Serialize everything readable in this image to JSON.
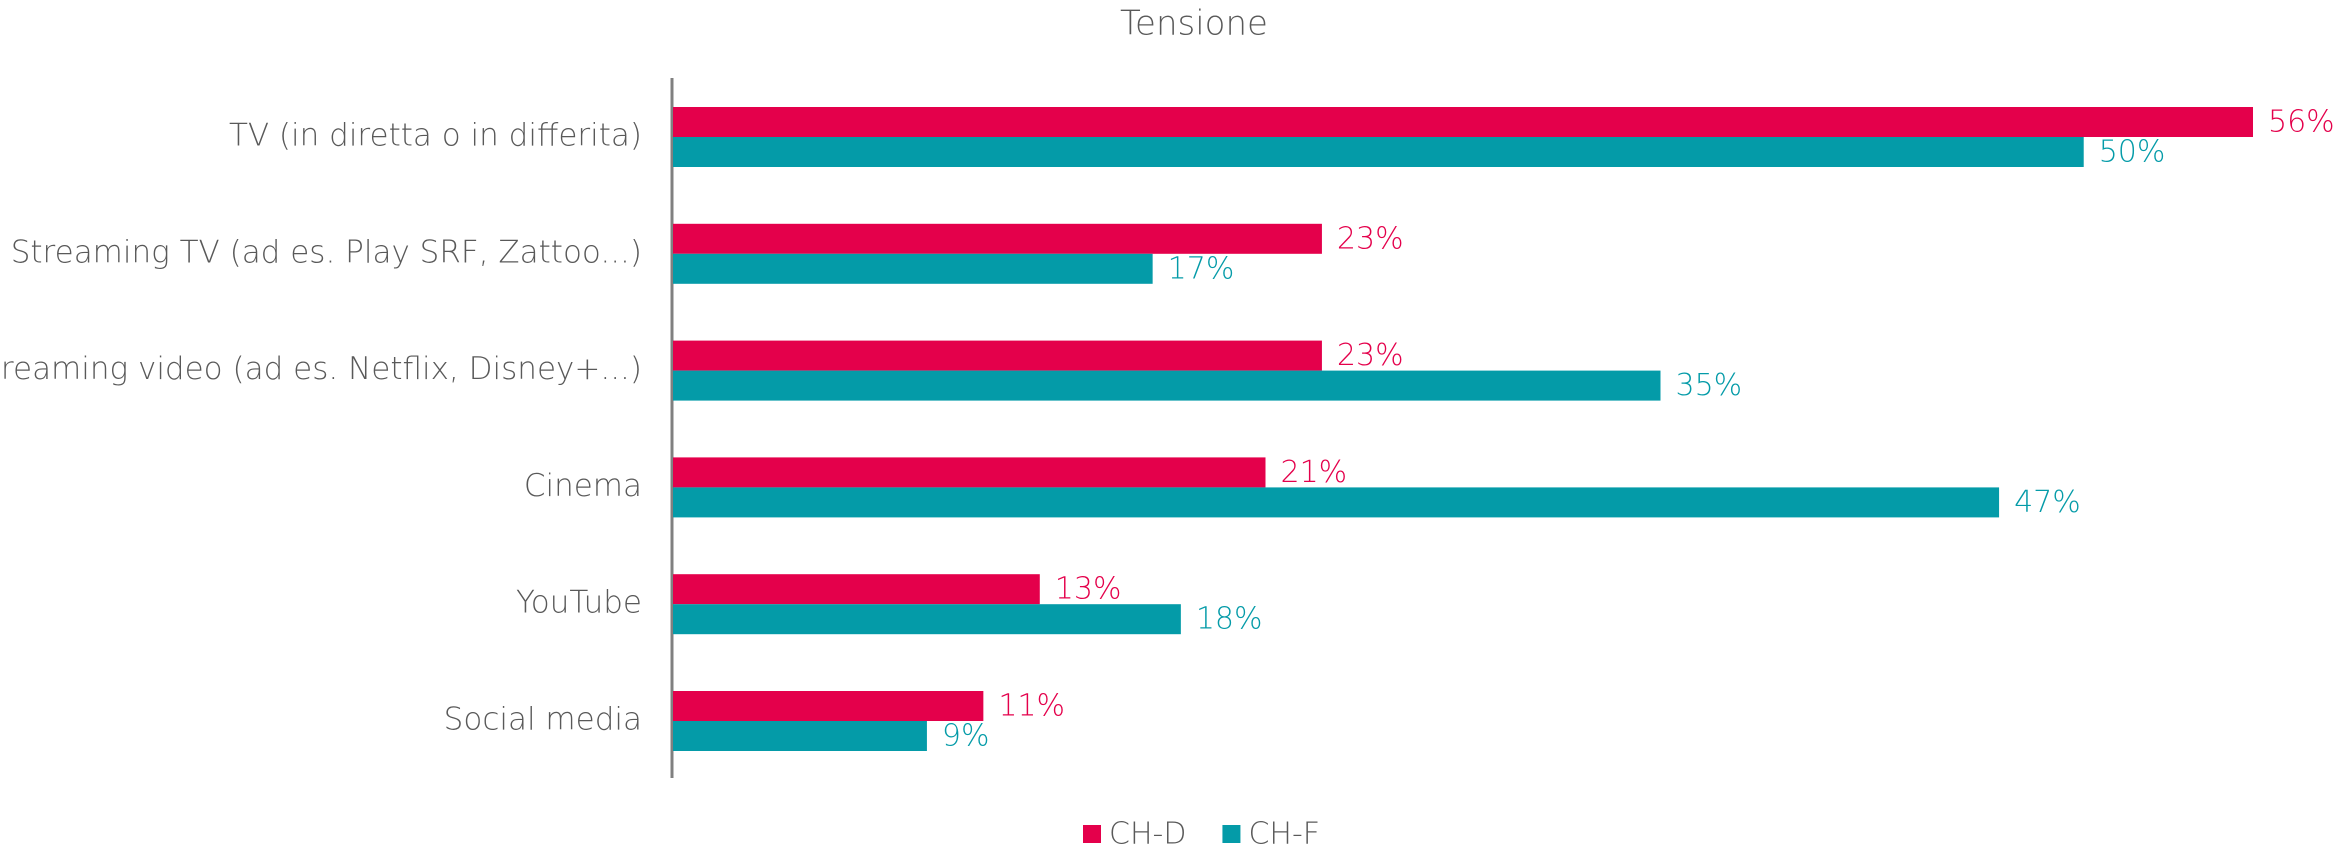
{
  "chart_data": {
    "type": "hbar",
    "title": "Tensione",
    "categories": [
      "TV (in diretta o in differita)",
      "Streaming TV (ad es. Play SRF, Zattoo...)",
      "Streaming video (ad es. Netflix, Disney+...)",
      "Cinema",
      "YouTube",
      "Social media"
    ],
    "series": [
      {
        "name": "CH-D",
        "color": "#e4004b",
        "values": [
          56,
          23,
          23,
          21,
          13,
          11
        ],
        "value_labels": [
          "56%",
          "23%",
          "23%",
          "21%",
          "13%",
          "11%"
        ]
      },
      {
        "name": "CH-F",
        "color": "#049ba8",
        "values": [
          50,
          17,
          35,
          47,
          18,
          9
        ],
        "value_labels": [
          "50%",
          "17%",
          "35%",
          "47%",
          "18%",
          "9%"
        ]
      }
    ],
    "legend": "bottom"
  }
}
